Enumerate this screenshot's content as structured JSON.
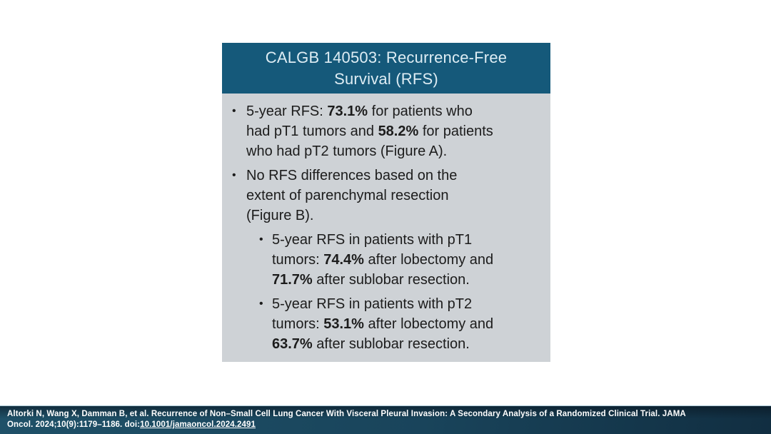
{
  "slide": {
    "title": "CALGB 140503: Recurrence-Free\nSurvival (RFS)",
    "bullets": [
      {
        "level": 1,
        "segments": [
          {
            "text": "5-year RFS: "
          },
          {
            "text": "73.1%",
            "bold": true
          },
          {
            "text": " for patients who\nhad pT1 tumors and "
          },
          {
            "text": "58.2%",
            "bold": true
          },
          {
            "text": " for patients\nwho had pT2 tumors (Figure A)."
          }
        ]
      },
      {
        "level": 1,
        "segments": [
          {
            "text": "No RFS differences based on the\nextent of parenchymal resection\n(Figure B)."
          }
        ]
      },
      {
        "level": 2,
        "segments": [
          {
            "text": "5-year RFS in patients with pT1\ntumors: "
          },
          {
            "text": "74.4%",
            "bold": true
          },
          {
            "text": " after lobectomy and\n"
          },
          {
            "text": "71.7%",
            "bold": true
          },
          {
            "text": " after sublobar resection."
          }
        ]
      },
      {
        "level": 2,
        "segments": [
          {
            "text": "5-year RFS in patients with pT2\ntumors: "
          },
          {
            "text": "53.1%",
            "bold": true
          },
          {
            "text": " after lobectomy and\n"
          },
          {
            "text": "63.7%",
            "bold": true
          },
          {
            "text": " after sublobar resection."
          }
        ]
      }
    ],
    "stats": {
      "rfs_5yr_pT1": "73.1%",
      "rfs_5yr_pT2": "58.2%",
      "rfs_5yr_pT1_lobectomy": "74.4%",
      "rfs_5yr_pT1_sublobar": "71.7%",
      "rfs_5yr_pT2_lobectomy": "53.1%",
      "rfs_5yr_pT2_sublobar": "63.7%"
    }
  },
  "footer": {
    "line1": "Altorki N, Wang X, Damman B, et al. Recurrence of Non–Small Cell Lung Cancer With Visceral Pleural Invasion: A Secondary Analysis of a Randomized Clinical Trial. JAMA",
    "line2_prefix": "Oncol. 2024;10(9):1179–1186. doi:",
    "line2_link": "10.1001/jamaoncol.2024.2491"
  },
  "colors": {
    "header_bg": "#15597A",
    "header_text": "#DEEDF4",
    "body_bg": "#CED2D6",
    "body_text": "#1C1C1C",
    "footer_left": "#1F5168",
    "footer_right": "#112E41",
    "footer_top_line": "#A9C7D5"
  }
}
